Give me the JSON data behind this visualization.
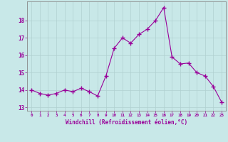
{
  "x": [
    0,
    1,
    2,
    3,
    4,
    5,
    6,
    7,
    8,
    9,
    10,
    11,
    12,
    13,
    14,
    15,
    16,
    17,
    18,
    19,
    20,
    21,
    22,
    23
  ],
  "y": [
    14.0,
    13.8,
    13.7,
    13.8,
    14.0,
    13.9,
    14.1,
    13.9,
    13.65,
    14.8,
    16.4,
    17.0,
    16.7,
    17.2,
    17.5,
    18.0,
    18.75,
    15.9,
    15.5,
    15.55,
    15.0,
    14.8,
    14.2,
    13.3
  ],
  "line_color": "#990099",
  "marker": "+",
  "marker_size": 4,
  "marker_lw": 1.0,
  "bg_color": "#c8e8e8",
  "grid_color": "#b0d0d0",
  "xlabel": "Windchill (Refroidissement éolien,°C)",
  "xlabel_color": "#990099",
  "tick_color": "#990099",
  "spine_color": "#888888",
  "ylabel_ticks": [
    13,
    14,
    15,
    16,
    17,
    18
  ],
  "xlim": [
    -0.5,
    23.5
  ],
  "ylim": [
    12.8,
    19.1
  ]
}
